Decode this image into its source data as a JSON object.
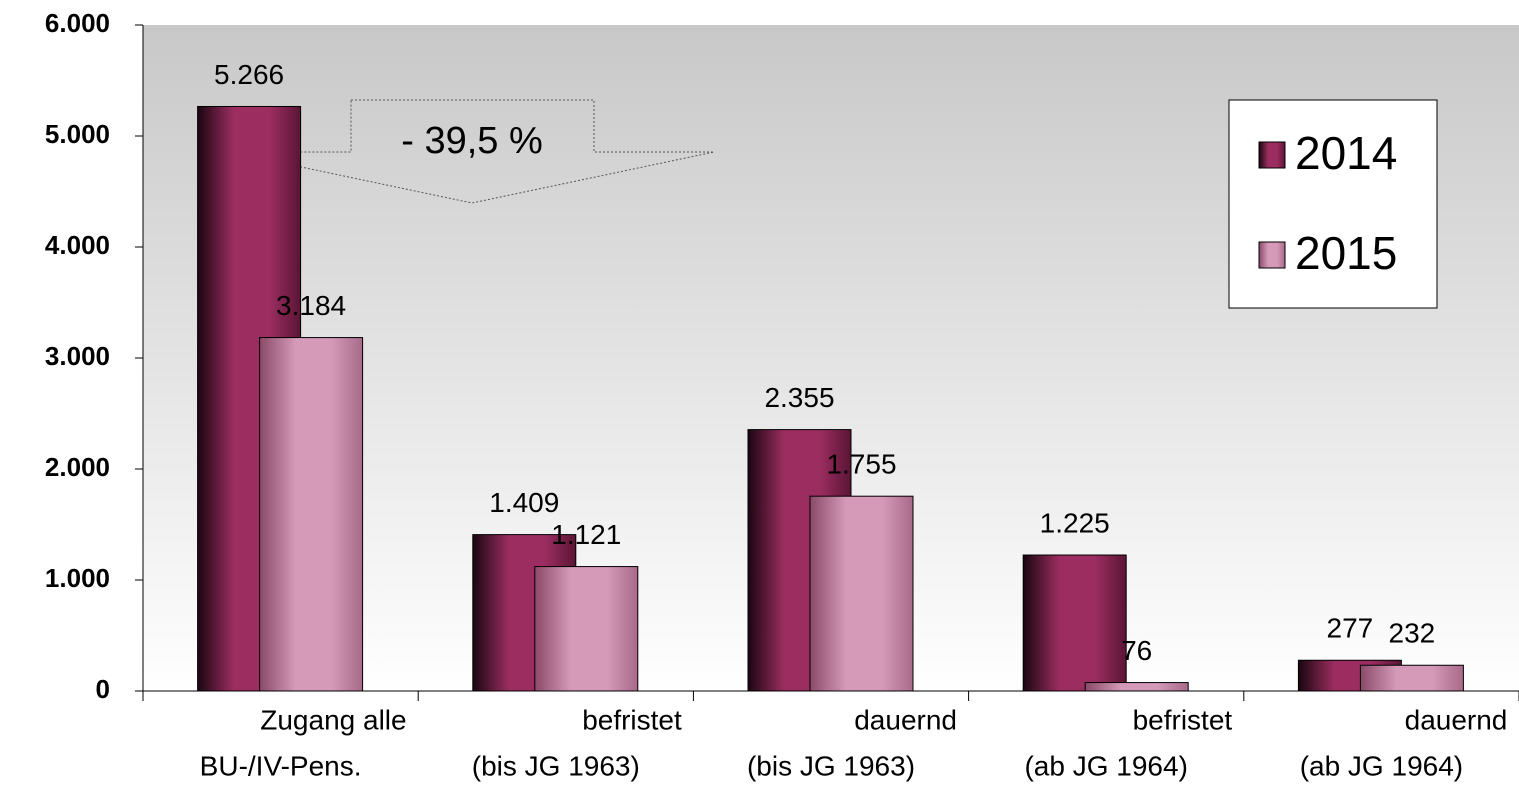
{
  "chart_data": {
    "type": "bar",
    "categories": [
      [
        "Zugang alle",
        "BU-/IV-Pens."
      ],
      [
        "befristet",
        "(bis JG 1963)"
      ],
      [
        "dauernd",
        "(bis JG 1963)"
      ],
      [
        "befristet",
        "(ab JG 1964)"
      ],
      [
        "dauernd",
        "(ab JG 1964)"
      ]
    ],
    "series": [
      {
        "name": "2014",
        "color": "#9b2d60",
        "values": [
          5266,
          1409,
          2355,
          1225,
          277
        ],
        "value_labels": [
          "5.266",
          "1.409",
          "2.355",
          "1.225",
          "277"
        ]
      },
      {
        "name": "2015",
        "color": "#d49ab8",
        "values": [
          3184,
          1121,
          1755,
          76,
          232
        ],
        "value_labels": [
          "3.184",
          "1.121",
          "1.755",
          "76",
          "232"
        ]
      }
    ],
    "ylim": [
      0,
      6000
    ],
    "yticks": [
      0,
      {
        "value": 1000,
        "label": "1.000"
      },
      {
        "value": 2000,
        "label": "2.000"
      },
      {
        "value": 3000,
        "label": "3.000"
      },
      {
        "value": 4000,
        "label": "4.000"
      },
      {
        "value": 5000,
        "label": "5.000"
      },
      {
        "value": 6000,
        "label": "6.000"
      }
    ],
    "annotation": "- 39,5 %",
    "legend": "upper right"
  }
}
